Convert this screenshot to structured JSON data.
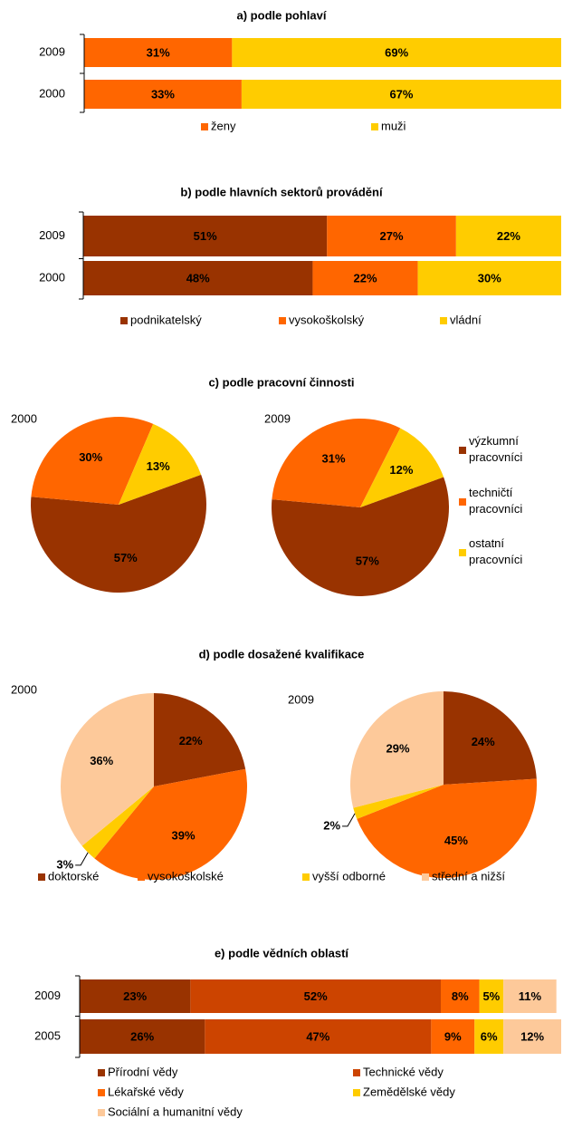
{
  "chart_data": [
    {
      "type": "bar",
      "title": "a) podle pohlaví",
      "categories": [
        "2009",
        "2000"
      ],
      "xlim": [
        0,
        100
      ],
      "series": [
        {
          "name": "ženy",
          "color": "#ff6600",
          "values": [
            31,
            33
          ],
          "value_labels": [
            "31%",
            "33%"
          ]
        },
        {
          "name": "muži",
          "color": "#ffcc00",
          "values": [
            69,
            67
          ],
          "value_labels": [
            "69%",
            "67%"
          ]
        }
      ]
    },
    {
      "type": "bar",
      "title": "b) podle hlavních sektorů provádění",
      "categories": [
        "2009",
        "2000"
      ],
      "xlim": [
        0,
        100
      ],
      "series": [
        {
          "name": "podnikatelský",
          "color": "#993300",
          "values": [
            51,
            48
          ],
          "value_labels": [
            "51%",
            "48%"
          ]
        },
        {
          "name": "vysokoškolský",
          "color": "#ff6600",
          "values": [
            27,
            22
          ],
          "value_labels": [
            "27%",
            "22%"
          ]
        },
        {
          "name": "vládní",
          "color": "#ffcc00",
          "values": [
            22,
            30
          ],
          "value_labels": [
            "22%",
            "30%"
          ]
        }
      ]
    },
    {
      "type": "pie",
      "title": "c) podle pracovní činnosti",
      "categories": [
        "výzkumní pracovníci",
        "techničtí pracovníci",
        "ostatní pracovníci"
      ],
      "colors": [
        "#993300",
        "#ff6600",
        "#ffcc00"
      ],
      "pies": [
        {
          "name": "2000",
          "values": [
            57,
            30,
            13
          ],
          "value_labels": [
            "57%",
            "30%",
            "13%"
          ]
        },
        {
          "name": "2009",
          "values": [
            57,
            31,
            12
          ],
          "value_labels": [
            "57%",
            "31%",
            "12%"
          ]
        }
      ]
    },
    {
      "type": "pie",
      "title": "d) podle dosažené kvalifikace",
      "categories": [
        "doktorské",
        "vysokoškolské",
        "vyšší odborné",
        "střední  a nižší"
      ],
      "colors": [
        "#993300",
        "#ff6600",
        "#ffcc00",
        "#fdc99a"
      ],
      "pies": [
        {
          "name": "2000",
          "values": [
            22,
            39,
            3,
            36
          ],
          "value_labels": [
            "22%",
            "39%",
            "3%",
            "36%"
          ]
        },
        {
          "name": "2009",
          "values": [
            24,
            45,
            2,
            29
          ],
          "value_labels": [
            "24%",
            "45%",
            "2%",
            "29%"
          ]
        }
      ]
    },
    {
      "type": "bar",
      "title": "e) podle vědních oblastí",
      "categories": [
        "2009",
        "2005"
      ],
      "xlim": [
        0,
        100
      ],
      "series": [
        {
          "name": "Přírodní vědy",
          "color": "#993300",
          "values": [
            23,
            26
          ],
          "value_labels": [
            "23%",
            "26%"
          ]
        },
        {
          "name": "Technické vědy",
          "color": "#cc4400",
          "values": [
            52,
            47
          ],
          "value_labels": [
            "52%",
            "47%"
          ]
        },
        {
          "name": "Lékařské vědy",
          "color": "#ff6600",
          "values": [
            8,
            9
          ],
          "value_labels": [
            "8%",
            "9%"
          ]
        },
        {
          "name": "Zemědělské vědy",
          "color": "#ffcc00",
          "values": [
            5,
            6
          ],
          "value_labels": [
            "5%",
            "6%"
          ]
        },
        {
          "name": "Sociální a humanitní vědy",
          "color": "#fdc99a",
          "values": [
            11,
            12
          ],
          "value_labels": [
            "11%",
            "12%"
          ]
        }
      ]
    }
  ]
}
